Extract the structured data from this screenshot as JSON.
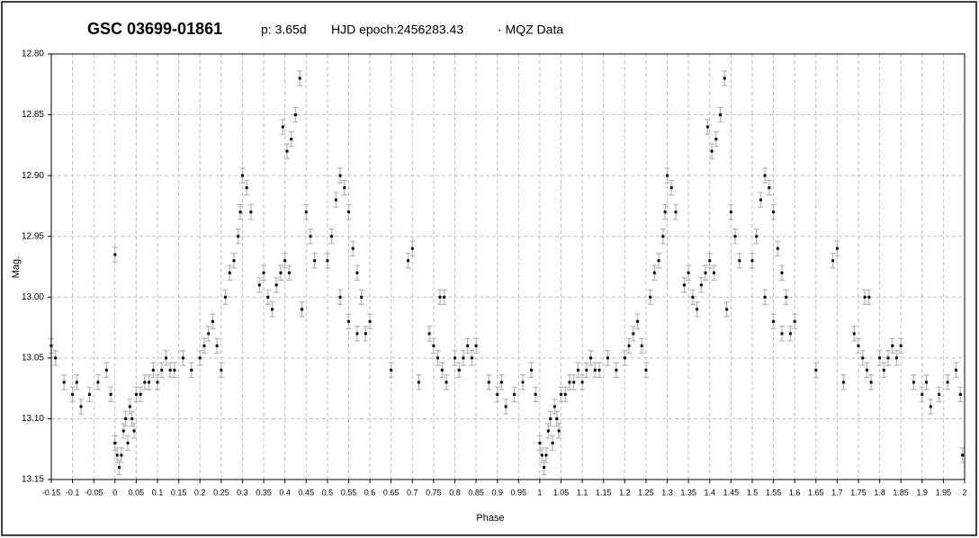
{
  "chart_data": {
    "type": "scatter",
    "title": "GSC 03699-01861",
    "period": "p: 3.65d",
    "epoch": "HJD epoch:2456283.43",
    "source": "· MQZ Data",
    "x_label": "Phase",
    "y_label": "Mag.",
    "xlim": [
      -0.15,
      2
    ],
    "ylim": [
      12.8,
      13.15
    ],
    "y_inverted": true,
    "grid": true,
    "xticks": [
      -0.15,
      -0.1,
      -0.05,
      0,
      0.05,
      0.1,
      0.15,
      0.2,
      0.25,
      0.3,
      0.35,
      0.4,
      0.45,
      0.5,
      0.55,
      0.6,
      0.65,
      0.7,
      0.75,
      0.8,
      0.85,
      0.9,
      0.95,
      1,
      1.05,
      1.1,
      1.15,
      1.2,
      1.25,
      1.3,
      1.35,
      1.4,
      1.45,
      1.5,
      1.55,
      1.6,
      1.65,
      1.7,
      1.75,
      1.8,
      1.85,
      1.9,
      1.95,
      2
    ],
    "yticks": [
      {
        "value": 12.8,
        "label": "12.80"
      },
      12.85,
      {
        "value": 12.9,
        "label": "12.90"
      },
      12.95,
      {
        "value": 13,
        "label": "13.00"
      },
      13.05,
      {
        "value": 13.1,
        "label": "13.10"
      },
      13.15
    ],
    "error": 0.006,
    "error_color": "#b4b4b4",
    "series": [
      {
        "color": "#000000",
        "x": [
          -0.15,
          -0.14,
          -0.12,
          -0.1,
          -0.09,
          -0.08,
          -0.06,
          -0.04,
          -0.02,
          -0.01,
          0,
          0.005,
          0.01,
          0.015,
          0.02,
          0.025,
          0.03,
          0.035,
          0.04,
          0.045,
          0.05,
          0.06,
          0.07,
          0.08,
          0.09,
          0.1,
          0.11,
          0.12,
          0.13,
          0.14,
          0.16,
          0.18,
          0.2,
          0.21,
          0.22,
          0.23,
          0.24,
          0.25,
          0.26,
          0.27,
          0.28,
          0.29,
          0.295,
          0.3,
          0.31,
          0.32,
          0.34,
          0.35,
          0.36,
          0.37,
          0.38,
          0.39,
          0.4,
          0.41,
          0.395,
          0.405,
          0.415,
          0.425,
          0.435,
          0.44,
          0.45,
          0.46,
          0.47,
          0.5,
          0.51,
          0.52,
          0.53,
          0.54,
          0.55,
          0.56,
          0.57,
          0.58,
          0.53,
          0.55,
          0.57,
          0.59,
          0.6,
          0.65,
          0.69,
          0.7,
          0.715,
          0.74,
          0.75,
          0.76,
          0.77,
          0.78,
          0.765,
          0.775,
          0.8,
          0.81,
          0.82,
          0.83,
          0.84,
          0.85,
          0.88,
          0.9,
          0.91,
          0.92,
          0.94,
          0.96,
          0.98,
          0.99,
          0,
          1,
          1.005,
          1.01,
          1.015,
          1.02,
          1.025,
          1.03,
          1.035,
          1.04,
          1.045,
          1.05,
          1.06,
          1.07,
          1.08,
          1.09,
          1.1,
          1.11,
          1.12,
          1.13,
          1.14,
          1.16,
          1.18,
          1.2,
          1.21,
          1.22,
          1.23,
          1.24,
          1.25,
          1.26,
          1.27,
          1.28,
          1.29,
          1.295,
          1.3,
          1.31,
          1.32,
          1.34,
          1.35,
          1.36,
          1.37,
          1.38,
          1.39,
          1.4,
          1.41,
          1.395,
          1.405,
          1.415,
          1.425,
          1.435,
          1.44,
          1.45,
          1.46,
          1.47,
          1.5,
          1.51,
          1.52,
          1.53,
          1.54,
          1.55,
          1.56,
          1.57,
          1.58,
          1.53,
          1.55,
          1.57,
          1.59,
          1.6,
          1.65,
          1.69,
          1.7,
          1.715,
          1.74,
          1.75,
          1.76,
          1.77,
          1.78,
          1.765,
          1.775,
          1.8,
          1.81,
          1.82,
          1.83,
          1.84,
          1.85,
          1.88,
          1.9,
          1.91,
          1.92,
          1.94,
          1.96,
          1.98,
          1.99,
          1.995
        ],
        "values": [
          13.04,
          13.05,
          13.07,
          13.08,
          13.07,
          13.09,
          13.08,
          13.07,
          13.06,
          13.08,
          13.12,
          13.13,
          13.14,
          13.13,
          13.11,
          13.1,
          13.12,
          13.09,
          13.1,
          13.11,
          13.08,
          13.08,
          13.07,
          13.07,
          13.06,
          13.07,
          13.06,
          13.05,
          13.06,
          13.06,
          13.05,
          13.06,
          13.05,
          13.04,
          13.03,
          13.02,
          13.04,
          13.06,
          13.0,
          12.98,
          12.97,
          12.95,
          12.93,
          12.9,
          12.91,
          12.93,
          12.99,
          12.98,
          13.0,
          13.01,
          12.99,
          12.98,
          12.97,
          12.98,
          12.86,
          12.88,
          12.87,
          12.85,
          12.82,
          13.01,
          12.93,
          12.95,
          12.97,
          12.97,
          12.95,
          12.92,
          12.9,
          12.91,
          12.93,
          12.96,
          12.98,
          13.0,
          13.0,
          13.02,
          13.03,
          13.03,
          13.02,
          13.06,
          12.97,
          12.96,
          13.07,
          13.03,
          13.04,
          13.05,
          13.06,
          13.07,
          13.0,
          13.0,
          13.05,
          13.06,
          13.05,
          13.04,
          13.05,
          13.04,
          13.07,
          13.08,
          13.07,
          13.09,
          13.08,
          13.07,
          13.06,
          13.08,
          12.965,
          13.12,
          13.13,
          13.14,
          13.13,
          13.11,
          13.1,
          13.12,
          13.09,
          13.1,
          13.11,
          13.08,
          13.08,
          13.07,
          13.07,
          13.06,
          13.07,
          13.06,
          13.05,
          13.06,
          13.06,
          13.05,
          13.06,
          13.05,
          13.04,
          13.03,
          13.02,
          13.04,
          13.06,
          13.0,
          12.98,
          12.97,
          12.95,
          12.93,
          12.9,
          12.91,
          12.93,
          12.99,
          12.98,
          13.0,
          13.01,
          12.99,
          12.98,
          12.97,
          12.98,
          12.86,
          12.88,
          12.87,
          12.85,
          12.82,
          13.01,
          12.93,
          12.95,
          12.97,
          12.97,
          12.95,
          12.92,
          12.9,
          12.91,
          12.93,
          12.96,
          12.98,
          13.0,
          13.0,
          13.02,
          13.03,
          13.03,
          13.02,
          13.06,
          12.97,
          12.96,
          13.07,
          13.03,
          13.04,
          13.05,
          13.06,
          13.07,
          13.0,
          13.0,
          13.05,
          13.06,
          13.05,
          13.04,
          13.05,
          13.04,
          13.07,
          13.08,
          13.07,
          13.09,
          13.08,
          13.07,
          13.06,
          13.08,
          13.13
        ]
      }
    ]
  }
}
